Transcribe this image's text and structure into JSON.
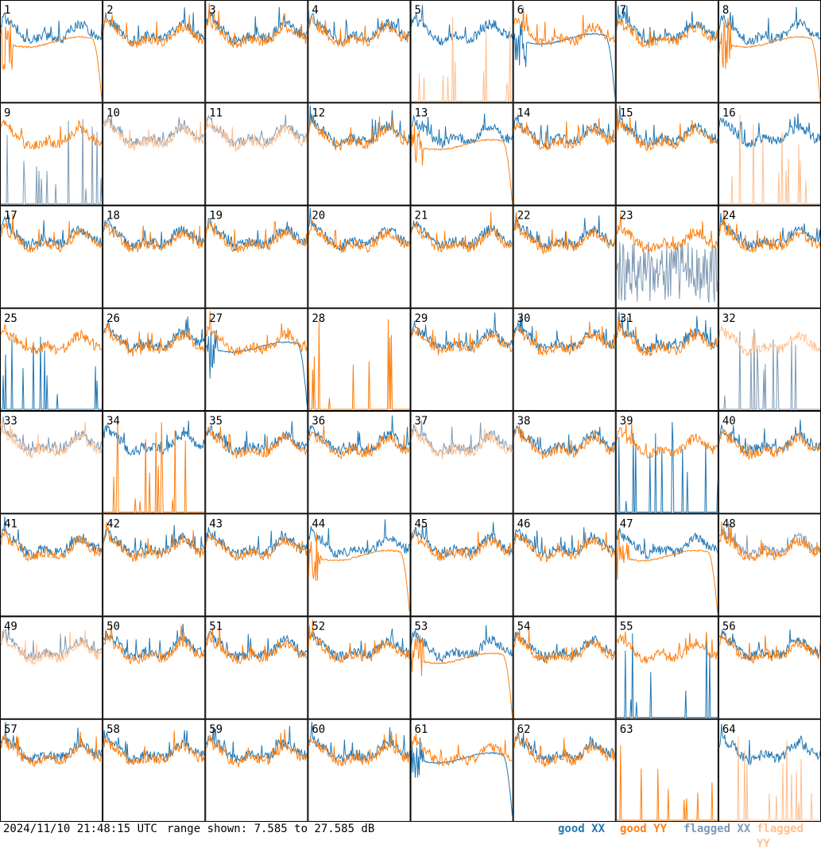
{
  "footer": {
    "timestamp": "2024/11/10 21:48:15 UTC",
    "range": "range shown: 7.585 to 27.585 dB"
  },
  "legend": [
    {
      "key": "good_xx",
      "label": "good XX",
      "color": "#1f77b4"
    },
    {
      "key": "good_yy",
      "label": "good YY",
      "color": "#ff7f0e"
    },
    {
      "key": "flagged_xx",
      "label": "flagged XX",
      "color": "#7f9ab5"
    },
    {
      "key": "flagged_yy",
      "label": "flagged YY",
      "color": "#ffbf8f"
    }
  ],
  "chart_data": {
    "type": "line",
    "grid": {
      "rows": 8,
      "cols": 8
    },
    "y_range_db": [
      7.585,
      27.585
    ],
    "panels": [
      {
        "id": "1",
        "xx": "good",
        "yy": "good",
        "shape_xx": "normal",
        "shape_yy": "rolloff"
      },
      {
        "id": "2",
        "xx": "good",
        "yy": "good",
        "shape_xx": "normal",
        "shape_yy": "normal"
      },
      {
        "id": "3",
        "xx": "good",
        "yy": "good",
        "shape_xx": "normal",
        "shape_yy": "normal"
      },
      {
        "id": "4",
        "xx": "good",
        "yy": "good",
        "shape_xx": "normal",
        "shape_yy": "normal"
      },
      {
        "id": "5",
        "xx": "good",
        "yy": "flagged",
        "shape_xx": "normal",
        "shape_yy": "spikes"
      },
      {
        "id": "6",
        "xx": "good",
        "yy": "good",
        "shape_xx": "rolloff",
        "shape_yy": "normal"
      },
      {
        "id": "7",
        "xx": "good",
        "yy": "good",
        "shape_xx": "normal",
        "shape_yy": "normal"
      },
      {
        "id": "8",
        "xx": "good",
        "yy": "good",
        "shape_xx": "normal",
        "shape_yy": "rolloff"
      },
      {
        "id": "9",
        "xx": "flagged",
        "yy": "good",
        "shape_xx": "spikes",
        "shape_yy": "normal"
      },
      {
        "id": "10",
        "xx": "flagged",
        "yy": "flagged",
        "shape_xx": "normal",
        "shape_yy": "normal"
      },
      {
        "id": "11",
        "xx": "flagged",
        "yy": "flagged",
        "shape_xx": "normal",
        "shape_yy": "normal"
      },
      {
        "id": "12",
        "xx": "good",
        "yy": "good",
        "shape_xx": "normal",
        "shape_yy": "normal"
      },
      {
        "id": "13",
        "xx": "good",
        "yy": "good",
        "shape_xx": "normal",
        "shape_yy": "rolloff"
      },
      {
        "id": "14",
        "xx": "good",
        "yy": "good",
        "shape_xx": "normal",
        "shape_yy": "normal"
      },
      {
        "id": "15",
        "xx": "good",
        "yy": "good",
        "shape_xx": "normal",
        "shape_yy": "normal"
      },
      {
        "id": "16",
        "xx": "good",
        "yy": "flagged",
        "shape_xx": "normal",
        "shape_yy": "spikes"
      },
      {
        "id": "17",
        "xx": "good",
        "yy": "good",
        "shape_xx": "normal",
        "shape_yy": "normal"
      },
      {
        "id": "18",
        "xx": "good",
        "yy": "good",
        "shape_xx": "normal",
        "shape_yy": "normal"
      },
      {
        "id": "19",
        "xx": "good",
        "yy": "good",
        "shape_xx": "normal",
        "shape_yy": "normal"
      },
      {
        "id": "20",
        "xx": "good",
        "yy": "good",
        "shape_xx": "normal",
        "shape_yy": "normal"
      },
      {
        "id": "21",
        "xx": "good",
        "yy": "good",
        "shape_xx": "normal",
        "shape_yy": "normal"
      },
      {
        "id": "22",
        "xx": "good",
        "yy": "good",
        "shape_xx": "normal",
        "shape_yy": "normal"
      },
      {
        "id": "23",
        "xx": "flagged",
        "yy": "good",
        "shape_xx": "noise",
        "shape_yy": "normal"
      },
      {
        "id": "24",
        "xx": "good",
        "yy": "good",
        "shape_xx": "normal",
        "shape_yy": "normal"
      },
      {
        "id": "25",
        "xx": "good",
        "yy": "good",
        "shape_xx": "spikes",
        "shape_yy": "normal"
      },
      {
        "id": "26",
        "xx": "good",
        "yy": "good",
        "shape_xx": "normal",
        "shape_yy": "normal"
      },
      {
        "id": "27",
        "xx": "good",
        "yy": "good",
        "shape_xx": "rolloff",
        "shape_yy": "normal"
      },
      {
        "id": "28",
        "xx": "none",
        "yy": "good",
        "shape_xx": "none",
        "shape_yy": "spikes"
      },
      {
        "id": "29",
        "xx": "good",
        "yy": "good",
        "shape_xx": "normal",
        "shape_yy": "normal"
      },
      {
        "id": "30",
        "xx": "good",
        "yy": "good",
        "shape_xx": "normal",
        "shape_yy": "normal"
      },
      {
        "id": "31",
        "xx": "good",
        "yy": "good",
        "shape_xx": "normal",
        "shape_yy": "normal"
      },
      {
        "id": "32",
        "xx": "flagged",
        "yy": "flagged",
        "shape_xx": "spikes",
        "shape_yy": "normal"
      },
      {
        "id": "33",
        "xx": "flagged",
        "yy": "flagged",
        "shape_xx": "normal",
        "shape_yy": "normal"
      },
      {
        "id": "34",
        "xx": "good",
        "yy": "good",
        "shape_xx": "normal",
        "shape_yy": "spikes"
      },
      {
        "id": "35",
        "xx": "good",
        "yy": "good",
        "shape_xx": "normal",
        "shape_yy": "normal"
      },
      {
        "id": "36",
        "xx": "good",
        "yy": "good",
        "shape_xx": "normal",
        "shape_yy": "normal"
      },
      {
        "id": "37",
        "xx": "flagged",
        "yy": "flagged",
        "shape_xx": "normal",
        "shape_yy": "normal"
      },
      {
        "id": "38",
        "xx": "good",
        "yy": "good",
        "shape_xx": "normal",
        "shape_yy": "normal"
      },
      {
        "id": "39",
        "xx": "good",
        "yy": "good",
        "shape_xx": "spikes",
        "shape_yy": "normal"
      },
      {
        "id": "40",
        "xx": "good",
        "yy": "good",
        "shape_xx": "normal",
        "shape_yy": "normal"
      },
      {
        "id": "41",
        "xx": "good",
        "yy": "good",
        "shape_xx": "normal",
        "shape_yy": "normal"
      },
      {
        "id": "42",
        "xx": "good",
        "yy": "good",
        "shape_xx": "normal",
        "shape_yy": "normal"
      },
      {
        "id": "43",
        "xx": "good",
        "yy": "good",
        "shape_xx": "normal",
        "shape_yy": "normal"
      },
      {
        "id": "44",
        "xx": "good",
        "yy": "good",
        "shape_xx": "normal",
        "shape_yy": "rolloff"
      },
      {
        "id": "45",
        "xx": "good",
        "yy": "good",
        "shape_xx": "normal",
        "shape_yy": "normal"
      },
      {
        "id": "46",
        "xx": "good",
        "yy": "good",
        "shape_xx": "normal",
        "shape_yy": "normal"
      },
      {
        "id": "47",
        "xx": "good",
        "yy": "good",
        "shape_xx": "normal",
        "shape_yy": "rolloff"
      },
      {
        "id": "48",
        "xx": "flagged",
        "yy": "good",
        "shape_xx": "normal",
        "shape_yy": "normal"
      },
      {
        "id": "49",
        "xx": "flagged",
        "yy": "flagged",
        "shape_xx": "normal",
        "shape_yy": "normal"
      },
      {
        "id": "50",
        "xx": "good",
        "yy": "good",
        "shape_xx": "normal",
        "shape_yy": "normal"
      },
      {
        "id": "51",
        "xx": "good",
        "yy": "good",
        "shape_xx": "normal",
        "shape_yy": "normal"
      },
      {
        "id": "52",
        "xx": "good",
        "yy": "good",
        "shape_xx": "normal",
        "shape_yy": "normal"
      },
      {
        "id": "53",
        "xx": "good",
        "yy": "good",
        "shape_xx": "normal",
        "shape_yy": "rolloff"
      },
      {
        "id": "54",
        "xx": "good",
        "yy": "good",
        "shape_xx": "normal",
        "shape_yy": "normal"
      },
      {
        "id": "55",
        "xx": "good",
        "yy": "good",
        "shape_xx": "spikes",
        "shape_yy": "normal"
      },
      {
        "id": "56",
        "xx": "good",
        "yy": "good",
        "shape_xx": "normal",
        "shape_yy": "normal"
      },
      {
        "id": "57",
        "xx": "good",
        "yy": "good",
        "shape_xx": "normal",
        "shape_yy": "normal"
      },
      {
        "id": "58",
        "xx": "good",
        "yy": "good",
        "shape_xx": "normal",
        "shape_yy": "normal"
      },
      {
        "id": "59",
        "xx": "good",
        "yy": "good",
        "shape_xx": "normal",
        "shape_yy": "normal"
      },
      {
        "id": "60",
        "xx": "good",
        "yy": "good",
        "shape_xx": "normal",
        "shape_yy": "normal"
      },
      {
        "id": "61",
        "xx": "good",
        "yy": "good",
        "shape_xx": "rolloff",
        "shape_yy": "normal"
      },
      {
        "id": "62",
        "xx": "good",
        "yy": "good",
        "shape_xx": "normal",
        "shape_yy": "normal"
      },
      {
        "id": "63",
        "xx": "none",
        "yy": "good",
        "shape_xx": "none",
        "shape_yy": "spikes"
      },
      {
        "id": "64",
        "xx": "good",
        "yy": "flagged",
        "shape_xx": "normal",
        "shape_yy": "spikes"
      }
    ]
  }
}
